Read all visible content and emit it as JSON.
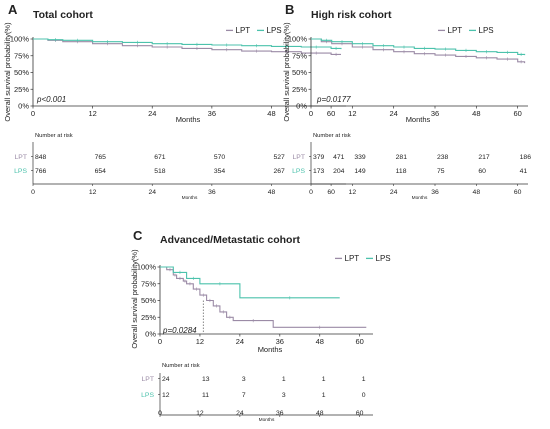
{
  "chart_data": [
    {
      "panel": "A",
      "type": "line",
      "title": "Total cohort",
      "xlabel": "Months",
      "ylabel": "Overall survival probability(%)",
      "xlim": [
        0,
        63
      ],
      "ylim": [
        0,
        100
      ],
      "xticks": [
        0,
        12,
        24,
        36,
        48,
        60
      ],
      "yticks": [
        "0%",
        "25%",
        "50%",
        "75%",
        "100%"
      ],
      "p_value": "p<0.001",
      "legend": {
        "position": "top-center",
        "entries": [
          "LPT",
          "LPS"
        ]
      },
      "series": [
        {
          "name": "LPT",
          "color": "#9b8ba6",
          "x": [
            0,
            3,
            6,
            12,
            18,
            24,
            30,
            36,
            42,
            48,
            54,
            60,
            62
          ],
          "y": [
            100,
            98,
            96,
            93,
            90,
            88,
            86,
            84,
            82,
            81,
            79,
            77,
            77
          ]
        },
        {
          "name": "LPS",
          "color": "#4cc2ac",
          "x": [
            0,
            3,
            6,
            12,
            18,
            24,
            30,
            36,
            42,
            48,
            54,
            60,
            62
          ],
          "y": [
            100,
            99,
            98,
            96,
            95,
            93,
            92,
            91,
            90,
            89,
            88,
            86,
            85
          ]
        }
      ],
      "risk_table": {
        "title": "Number at risk",
        "xlabel": "Months",
        "times": [
          0,
          12,
          24,
          36,
          48,
          60
        ],
        "rows": [
          {
            "label": "LPT",
            "color": "#9b8ba6",
            "values": [
              848,
              765,
              671,
              570,
              527,
              471
            ]
          },
          {
            "label": "LPS",
            "color": "#4cc2ac",
            "values": [
              766,
              654,
              518,
              354,
              267,
              204
            ]
          }
        ]
      }
    },
    {
      "panel": "B",
      "type": "line",
      "title": "High risk cohort",
      "xlabel": "Months",
      "ylabel": "Overall survival probability(%)",
      "xlim": [
        0,
        63
      ],
      "ylim": [
        0,
        100
      ],
      "xticks": [
        0,
        12,
        24,
        36,
        48,
        60
      ],
      "yticks": [
        "0%",
        "25%",
        "50%",
        "75%",
        "100%"
      ],
      "p_value": "p=0.0177",
      "legend": {
        "position": "top-center",
        "entries": [
          "LPT",
          "LPS"
        ]
      },
      "series": [
        {
          "name": "LPT",
          "color": "#9b8ba6",
          "x": [
            0,
            3,
            6,
            12,
            18,
            24,
            30,
            36,
            42,
            48,
            54,
            60,
            62
          ],
          "y": [
            100,
            96,
            93,
            88,
            84,
            81,
            78,
            76,
            74,
            72,
            70,
            66,
            64
          ]
        },
        {
          "name": "LPS",
          "color": "#4cc2ac",
          "x": [
            0,
            3,
            6,
            12,
            18,
            24,
            30,
            36,
            42,
            48,
            54,
            60,
            62
          ],
          "y": [
            100,
            98,
            96,
            93,
            90,
            88,
            86,
            85,
            83,
            81,
            80,
            77,
            76
          ]
        }
      ],
      "risk_table": {
        "title": "Number at risk",
        "xlabel": "Months",
        "times": [
          0,
          12,
          24,
          36,
          48,
          60
        ],
        "rows": [
          {
            "label": "LPT",
            "color": "#9b8ba6",
            "values": [
              379,
              339,
              281,
              238,
              217,
              186
            ]
          },
          {
            "label": "LPS",
            "color": "#4cc2ac",
            "values": [
              173,
              149,
              118,
              75,
              60,
              41
            ]
          }
        ]
      }
    },
    {
      "panel": "C",
      "type": "line",
      "title": "Advanced/Metastatic cohort",
      "xlabel": "Months",
      "ylabel": "Overall survival probability(%)",
      "xlim": [
        0,
        64
      ],
      "ylim": [
        0,
        100
      ],
      "xticks": [
        0,
        12,
        24,
        36,
        48,
        60
      ],
      "yticks": [
        "0%",
        "25%",
        "50%",
        "75%",
        "100%"
      ],
      "p_value": "p=0.0284",
      "median_marker": {
        "x": 13,
        "y": 50
      },
      "legend": {
        "position": "top-right",
        "entries": [
          "LPT",
          "LPS"
        ]
      },
      "series": [
        {
          "name": "LPT",
          "color": "#9b8ba6",
          "x": [
            0,
            2,
            4,
            5,
            7,
            8,
            10,
            12,
            14,
            16,
            18,
            20,
            22,
            34,
            62
          ],
          "y": [
            100,
            96,
            88,
            83,
            79,
            75,
            67,
            58,
            50,
            42,
            33,
            25,
            20,
            10,
            10
          ]
        },
        {
          "name": "LPS",
          "color": "#4cc2ac",
          "x": [
            0,
            4,
            8,
            12,
            24,
            54
          ],
          "y": [
            100,
            92,
            83,
            75,
            54,
            54
          ]
        }
      ],
      "risk_table": {
        "title": "Number at risk",
        "xlabel": "Months",
        "times": [
          0,
          12,
          24,
          36,
          48,
          60
        ],
        "rows": [
          {
            "label": "LPT",
            "color": "#9b8ba6",
            "values": [
              24,
              13,
              3,
              1,
              1,
              1
            ]
          },
          {
            "label": "LPS",
            "color": "#4cc2ac",
            "values": [
              12,
              11,
              7,
              3,
              1,
              0
            ]
          }
        ]
      }
    }
  ]
}
